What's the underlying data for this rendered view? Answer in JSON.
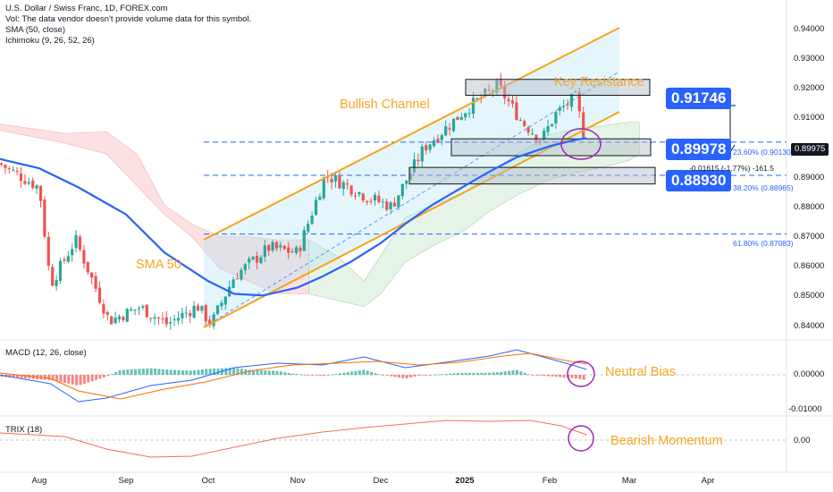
{
  "chart_data": [
    {
      "type": "candlestick",
      "title": "U.S. Dollar / Swiss Franc, 1D, FOREX.com",
      "legend_lines": [
        "Vol: The data vendor doesn't provide volume data for this symbol.",
        "SMA (50, close)",
        "Ichimoku (9, 26, 52, 26)"
      ],
      "x_ticks": [
        "Aug",
        "Sep",
        "Oct",
        "Nov",
        "Dec",
        "2025",
        "Feb",
        "Mar",
        "Apr"
      ],
      "y_ticks": [
        "0.94000",
        "0.93000",
        "0.92000",
        "0.91000",
        "0.90000",
        "0.89000",
        "0.88000",
        "0.87000",
        "0.86000",
        "0.85000",
        "0.84000"
      ],
      "ylim": [
        0.8375,
        0.9445
      ],
      "last_price": "0.89975",
      "price_tags": [
        "0.91746",
        "0.89978",
        "0.88930"
      ],
      "horizontal_levels": [
        0.89978,
        0.8893,
        0.87083
      ],
      "resistance_zone": [
        0.9145,
        0.9195
      ],
      "support_zones": [
        [
          0.8955,
          0.9008
        ],
        [
          0.8866,
          0.8918
        ]
      ],
      "fib_labels": [
        "23.60% (0.90130)",
        "38.20% (0.88965)",
        "61.80% (0.87083)"
      ],
      "measure_label": "-0.01615 (-1.77%) -161.5",
      "annotations": [
        "Bullish Channel",
        "Key Resistance",
        "SMA 50"
      ],
      "approx_price_path": [
        {
          "date": "Jul 22",
          "price": 0.893
        },
        {
          "date": "Aug 1",
          "price": 0.8855
        },
        {
          "date": "Aug 5",
          "price": 0.855
        },
        {
          "date": "Aug 14",
          "price": 0.869
        },
        {
          "date": "Aug 26",
          "price": 0.8435
        },
        {
          "date": "Sep 6",
          "price": 0.8478
        },
        {
          "date": "Sep 16",
          "price": 0.8425
        },
        {
          "date": "Sep 27",
          "price": 0.8482
        },
        {
          "date": "Oct 2",
          "price": 0.8425
        },
        {
          "date": "Oct 10",
          "price": 0.8575
        },
        {
          "date": "Oct 22",
          "price": 0.8665
        },
        {
          "date": "Nov 1",
          "price": 0.865
        },
        {
          "date": "Nov 11",
          "price": 0.8895
        },
        {
          "date": "Nov 20",
          "price": 0.8855
        },
        {
          "date": "Nov 26",
          "price": 0.8825
        },
        {
          "date": "Dec 5",
          "price": 0.8795
        },
        {
          "date": "Dec 17",
          "price": 0.898
        },
        {
          "date": "Dec 26",
          "price": 0.905
        },
        {
          "date": "Jan 2",
          "price": 0.9105
        },
        {
          "date": "Jan 13",
          "price": 0.9175
        },
        {
          "date": "Jan 22",
          "price": 0.906
        },
        {
          "date": "Jan 29",
          "price": 0.9005
        },
        {
          "date": "Feb 3",
          "price": 0.9085
        },
        {
          "date": "Feb 10",
          "price": 0.914
        },
        {
          "date": "Feb 14",
          "price": 0.8985
        }
      ]
    },
    {
      "type": "line",
      "title": "MACD (12, 26, close)",
      "y_ticks": [
        "0.00000",
        "-0.01000"
      ],
      "annotation": "Neutral Bias"
    },
    {
      "type": "line",
      "title": "TRIX (18)",
      "y_ticks": [
        "0.00"
      ],
      "annotation": "Bearish Momentum"
    }
  ],
  "colors": {
    "bull": "#26a69a",
    "bear": "#ef5350",
    "sma": "#2962ff",
    "channel": "#f7a21b",
    "annotation": "#f5a623",
    "circle": "#9c27b0",
    "tag": "#2962ff"
  }
}
